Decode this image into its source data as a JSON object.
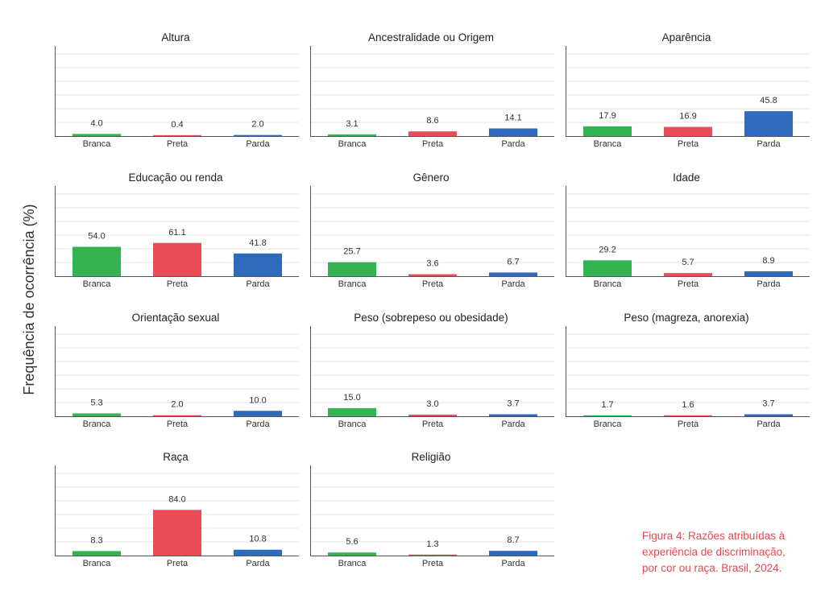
{
  "y_axis_label": "Frequência de ocorrência (%)",
  "caption_lines": [
    "Figura 4: Razões atribuídas à",
    "experiência de discriminação,",
    "por cor ou raça. Brasil, 2024."
  ],
  "colors": {
    "Branca": "#34b352",
    "Preta": "#ea4d55",
    "Parda": "#2f6bbd",
    "gridline": "#e6e6e6",
    "axis": "#555555",
    "caption": "#e8474f"
  },
  "chart_data": {
    "type": "bar",
    "layout": "small-multiples",
    "categories": [
      "Branca",
      "Preta",
      "Parda"
    ],
    "ylim": [
      0,
      100
    ],
    "grid": true,
    "legend": "none",
    "panels": [
      {
        "title": "Altura",
        "values": [
          4.0,
          0.4,
          2.0
        ],
        "labels": [
          "4.0",
          "0.4",
          "2.0"
        ]
      },
      {
        "title": "Ancestralidade ou Origem",
        "values": [
          3.1,
          8.6,
          14.1
        ],
        "labels": [
          "3.1",
          "8.6",
          "14.1"
        ]
      },
      {
        "title": "Aparência",
        "values": [
          17.9,
          16.9,
          45.8
        ],
        "labels": [
          "17.9",
          "16.9",
          "45.8"
        ]
      },
      {
        "title": "Educação ou renda",
        "values": [
          54.0,
          61.1,
          41.8
        ],
        "labels": [
          "54.0",
          "61.1",
          "41.8"
        ]
      },
      {
        "title": "Gênero",
        "values": [
          25.7,
          3.6,
          6.7
        ],
        "labels": [
          "25.7",
          "3.6",
          "6.7"
        ]
      },
      {
        "title": "Idade",
        "values": [
          29.2,
          5.7,
          8.9
        ],
        "labels": [
          "29.2",
          "5.7",
          "8.9"
        ]
      },
      {
        "title": "Orientação sexual",
        "values": [
          5.3,
          2.0,
          10.0
        ],
        "labels": [
          "5.3",
          "2.0",
          "10.0"
        ]
      },
      {
        "title": "Peso (sobrepeso ou obesidade)",
        "values": [
          15.0,
          3.0,
          3.7
        ],
        "labels": [
          "15.0",
          "3.0",
          "3.7"
        ]
      },
      {
        "title": "Peso (magreza, anorexia)",
        "values": [
          1.7,
          1.6,
          3.7
        ],
        "labels": [
          "1.7",
          "1.6",
          "3.7"
        ]
      },
      {
        "title": "Raça",
        "values": [
          8.3,
          84.0,
          10.8
        ],
        "labels": [
          "8.3",
          "84.0",
          "10.8"
        ]
      },
      {
        "title": "Religião",
        "values": [
          5.6,
          1.3,
          8.7
        ],
        "labels": [
          "5.6",
          "1.3",
          "8.7"
        ]
      }
    ]
  }
}
